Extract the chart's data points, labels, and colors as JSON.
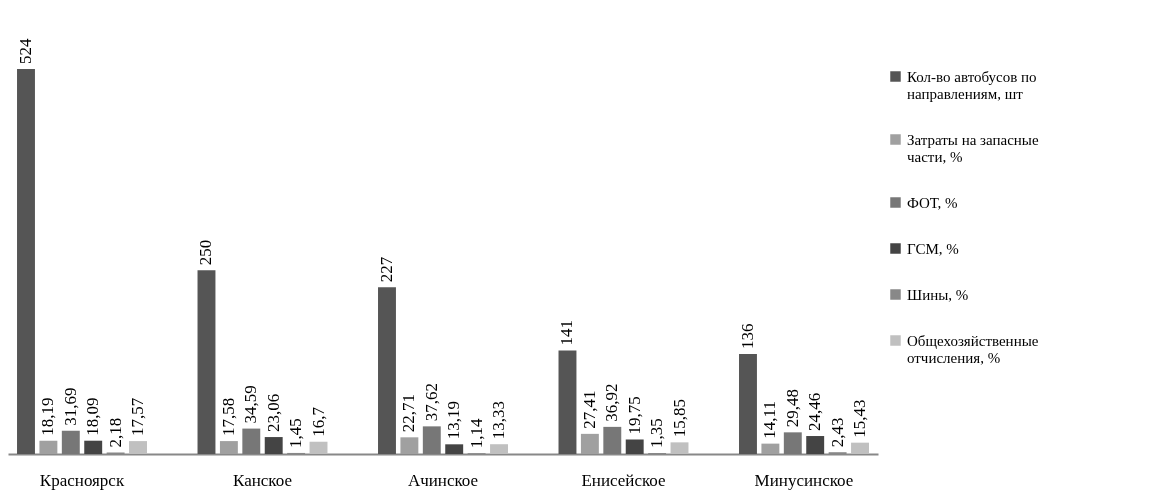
{
  "chart_data": {
    "type": "bar",
    "categories": [
      "Красноярск",
      "Канское",
      "Ачинское",
      "Енисейское",
      "Минусинское"
    ],
    "series": [
      {
        "name": "Кол-во автобусов по направлениям, шт",
        "color": "#555555",
        "values": [
          524,
          250,
          227,
          141,
          136
        ],
        "value_labels": [
          "524",
          "250",
          "227",
          "141",
          "136"
        ]
      },
      {
        "name": "Затраты на запасные части, %",
        "color": "#a0a0a0",
        "values": [
          18.19,
          17.58,
          22.71,
          27.41,
          14.11
        ],
        "value_labels": [
          "18,19",
          "17,58",
          "22,71",
          "27,41",
          "14,11"
        ]
      },
      {
        "name": "ФОТ, %",
        "color": "#777777",
        "values": [
          31.69,
          34.59,
          37.62,
          36.92,
          29.48
        ],
        "value_labels": [
          "31,69",
          "34,59",
          "37,62",
          "36,92",
          "29,48"
        ]
      },
      {
        "name": "ГСМ, %",
        "color": "#444444",
        "values": [
          18.09,
          23.06,
          13.19,
          19.75,
          24.46
        ],
        "value_labels": [
          "18,09",
          "23,06",
          "13,19",
          "19,75",
          "24,46"
        ]
      },
      {
        "name": "Шины, %",
        "color": "#888888",
        "values": [
          2.18,
          1.45,
          1.14,
          1.35,
          2.43
        ],
        "value_labels": [
          "2,18",
          "1,45",
          "1,14",
          "1,35",
          "2,43"
        ]
      },
      {
        "name": "Общехозяйственные отчисления, %",
        "color": "#c0c0c0",
        "values": [
          17.57,
          16.7,
          13.33,
          15.85,
          15.43
        ],
        "value_labels": [
          "17,57",
          "16,7",
          "13,33",
          "15,85",
          "15,43"
        ]
      }
    ],
    "legend": "right"
  }
}
